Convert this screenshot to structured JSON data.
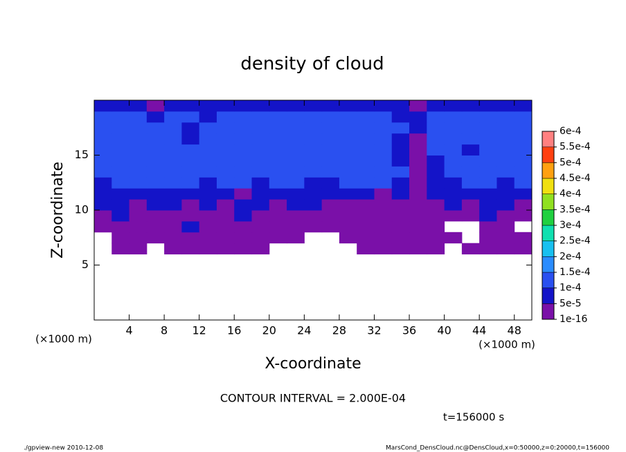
{
  "chart_data": {
    "type": "contour",
    "title": "density of cloud",
    "xlabel": "X-coordinate",
    "ylabel": "Z-coordinate",
    "x_unit": "(×1000 m)",
    "y_unit": "(×1000 m)",
    "annotation": "CONTOUR INTERVAL = 2.000E-04",
    "time_label": "t=156000 s",
    "footer_left": "./gpview-new   2010-12-08",
    "footer_right": "MarsCond_DensCloud.nc@DensCloud,x=0:50000,z=0:20000,t=156000",
    "xlim": [
      0,
      50
    ],
    "ylim": [
      0,
      20
    ],
    "xticks": [
      4,
      8,
      12,
      16,
      20,
      24,
      28,
      32,
      36,
      40,
      44,
      48
    ],
    "yticks": [
      5,
      10,
      15
    ],
    "levels": [
      {
        "value": 1e-16,
        "label": "1e-16"
      },
      {
        "value": 5e-05,
        "label": "5e-5"
      },
      {
        "value": 0.0001,
        "label": "1e-4"
      },
      {
        "value": 0.00015,
        "label": "1.5e-4"
      },
      {
        "value": 0.0002,
        "label": "2e-4"
      },
      {
        "value": 0.00025,
        "label": "2.5e-4"
      },
      {
        "value": 0.0003,
        "label": "3e-4"
      },
      {
        "value": 0.00035,
        "label": "3.5e-4"
      },
      {
        "value": 0.0004,
        "label": "4e-4"
      },
      {
        "value": 0.00045,
        "label": "4.5e-4"
      },
      {
        "value": 0.0005,
        "label": "5e-4"
      },
      {
        "value": 0.00055,
        "label": "5.5e-4"
      },
      {
        "value": 0.0006,
        "label": "6e-4"
      }
    ],
    "colors": [
      "#7a10a8",
      "#1414c8",
      "#2a50f0",
      "#2a8cff",
      "#18c0f0",
      "#10e0b0",
      "#20d040",
      "#90e020",
      "#f0e010",
      "#ffa010",
      "#ff4010",
      "#ff8080"
    ],
    "x": [
      1,
      3,
      5,
      7,
      9,
      11,
      13,
      15,
      17,
      19,
      21,
      23,
      25,
      27,
      29,
      31,
      33,
      35,
      37,
      39,
      41,
      43,
      45,
      47,
      49
    ],
    "y": [
      6.5,
      7.5,
      8.5,
      9.5,
      10.5,
      11.5,
      12.5,
      13.5,
      14.5,
      15.5,
      16.5,
      17.5,
      18.5,
      19.5
    ],
    "values": [
      [
        null,
        2e-05,
        2e-05,
        null,
        2e-05,
        2e-05,
        2e-05,
        2e-05,
        2e-05,
        2e-05,
        null,
        null,
        null,
        null,
        null,
        2e-05,
        2e-05,
        2e-05,
        2e-05,
        2e-05,
        null,
        2e-05,
        2e-05,
        2e-05,
        2e-05
      ],
      [
        null,
        2e-05,
        2e-05,
        2e-05,
        2e-05,
        2e-05,
        2e-05,
        2e-05,
        2e-05,
        2e-05,
        2e-05,
        2e-05,
        null,
        null,
        2e-05,
        2e-05,
        2e-05,
        2e-05,
        2e-05,
        2e-05,
        2e-05,
        null,
        2e-05,
        2e-05,
        2e-05
      ],
      [
        2e-05,
        2e-05,
        2e-05,
        2e-05,
        2e-05,
        8e-05,
        2e-05,
        2e-05,
        2e-05,
        2e-05,
        2e-05,
        2e-05,
        2e-05,
        2e-05,
        2e-05,
        2e-05,
        2e-05,
        2e-05,
        2e-05,
        2e-05,
        null,
        null,
        2e-05,
        2e-05,
        null
      ],
      [
        2e-05,
        8e-05,
        2e-05,
        2e-05,
        2e-05,
        2e-05,
        2e-05,
        2e-05,
        8e-05,
        2e-05,
        2e-05,
        2e-05,
        2e-05,
        2e-05,
        2e-05,
        2e-05,
        2e-05,
        2e-05,
        2e-05,
        2e-05,
        2e-05,
        2e-05,
        8e-05,
        2e-05,
        2e-05
      ],
      [
        8e-05,
        8e-05,
        2e-05,
        8e-05,
        8e-05,
        2e-05,
        8e-05,
        2e-05,
        8e-05,
        8e-05,
        2e-05,
        8e-05,
        8e-05,
        2e-05,
        2e-05,
        2e-05,
        2e-05,
        2e-05,
        2e-05,
        2e-05,
        8e-05,
        2e-05,
        8e-05,
        8e-05,
        2e-05
      ],
      [
        8e-05,
        8e-05,
        8e-05,
        8e-05,
        8e-05,
        8e-05,
        8e-05,
        8e-05,
        2e-05,
        8e-05,
        8e-05,
        8e-05,
        8e-05,
        8e-05,
        8e-05,
        8e-05,
        2e-05,
        8e-05,
        2e-05,
        8e-05,
        8e-05,
        8e-05,
        8e-05,
        8e-05,
        8e-05
      ],
      [
        8e-05,
        0.00012,
        0.00012,
        0.00012,
        0.00012,
        0.00012,
        8e-05,
        0.00012,
        0.00012,
        8e-05,
        0.00012,
        0.00012,
        8e-05,
        8e-05,
        0.00012,
        0.00012,
        0.00012,
        8e-05,
        2e-05,
        8e-05,
        8e-05,
        0.00012,
        0.00012,
        8e-05,
        0.00012
      ],
      [
        0.00012,
        0.00012,
        0.00012,
        0.00012,
        0.00012,
        0.00012,
        0.00012,
        0.00012,
        0.00012,
        0.00012,
        0.00012,
        0.00012,
        0.00012,
        0.00012,
        0.00012,
        0.00012,
        0.00012,
        0.00012,
        2e-05,
        8e-05,
        0.00012,
        0.00012,
        0.00012,
        0.00012,
        0.00012
      ],
      [
        0.00012,
        0.00012,
        0.00012,
        0.00012,
        0.00012,
        0.00012,
        0.00012,
        0.00012,
        0.00012,
        0.00012,
        0.00012,
        0.00012,
        0.00012,
        0.00012,
        0.00012,
        0.00012,
        0.00012,
        8e-05,
        2e-05,
        8e-05,
        0.00012,
        0.00012,
        0.00012,
        0.00012,
        0.00012
      ],
      [
        0.00012,
        0.00012,
        0.00012,
        0.00012,
        0.00012,
        0.00012,
        0.00012,
        0.00012,
        0.00012,
        0.00012,
        0.00012,
        0.00012,
        0.00012,
        0.00012,
        0.00012,
        0.00012,
        0.00012,
        8e-05,
        2e-05,
        0.00012,
        0.00012,
        8e-05,
        0.00012,
        0.00012,
        0.00012
      ],
      [
        0.00012,
        0.00012,
        0.00012,
        0.00012,
        0.00012,
        8e-05,
        0.00012,
        0.00012,
        0.00012,
        0.00012,
        0.00012,
        0.00012,
        0.00012,
        0.00012,
        0.00012,
        0.00012,
        0.00012,
        8e-05,
        2e-05,
        0.00012,
        0.00012,
        0.00012,
        0.00012,
        0.00012,
        0.00012
      ],
      [
        0.00012,
        0.00012,
        0.00012,
        0.00012,
        0.00012,
        8e-05,
        0.00012,
        0.00012,
        0.00012,
        0.00012,
        0.00012,
        0.00012,
        0.00012,
        0.00012,
        0.00012,
        0.00012,
        0.00012,
        0.00012,
        8e-05,
        0.00012,
        0.00012,
        0.00012,
        0.00012,
        0.00012,
        0.00012
      ],
      [
        0.00012,
        0.00012,
        0.00012,
        8e-05,
        0.00012,
        0.00012,
        8e-05,
        0.00012,
        0.00012,
        0.00012,
        0.00012,
        0.00012,
        0.00012,
        0.00012,
        0.00012,
        0.00012,
        0.00012,
        8e-05,
        8e-05,
        0.00012,
        0.00012,
        0.00012,
        0.00012,
        0.00012,
        0.00012
      ],
      [
        8e-05,
        8e-05,
        8e-05,
        2e-05,
        8e-05,
        8e-05,
        8e-05,
        8e-05,
        8e-05,
        8e-05,
        8e-05,
        8e-05,
        8e-05,
        8e-05,
        8e-05,
        8e-05,
        8e-05,
        8e-05,
        2e-05,
        8e-05,
        8e-05,
        8e-05,
        8e-05,
        8e-05,
        8e-05
      ]
    ]
  }
}
